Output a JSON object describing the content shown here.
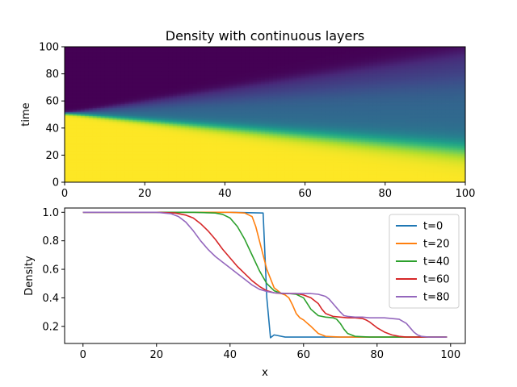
{
  "chart_data": [
    {
      "type": "heatmap",
      "title": "Density with continuous layers",
      "xlabel": "x",
      "ylabel": "time",
      "xlim": [
        0,
        100
      ],
      "ylim": [
        0,
        100
      ],
      "xticks": [
        0,
        20,
        40,
        60,
        80,
        100
      ],
      "yticks": [
        0,
        20,
        40,
        60,
        80,
        100
      ],
      "colormap": "viridis",
      "value_range": [
        0.12,
        1.0
      ],
      "description_fronts": {
        "dense_front_time": {
          "x": [
            0,
            100
          ],
          "time": [
            51,
            25
          ]
        },
        "middle_upper_front_time": {
          "x": [
            0,
            100
          ],
          "time": [
            51,
            75
          ]
        },
        "top_front_time": {
          "x": [
            0,
            100
          ],
          "time": [
            51,
            96
          ]
        }
      },
      "layer_levels": [
        1.0,
        0.43,
        0.26,
        0.12
      ]
    },
    {
      "type": "line",
      "xlabel": "x",
      "ylabel": "Density",
      "xlim": [
        -5,
        104
      ],
      "ylim": [
        0.08,
        1.03
      ],
      "xticks": [
        0,
        20,
        40,
        60,
        80,
        100
      ],
      "yticks": [
        0.2,
        0.4,
        0.6,
        0.8,
        1.0
      ],
      "legend_position": "top-right",
      "series": [
        {
          "name": "t=0",
          "color": "#1f77b4",
          "x": [
            0,
            10,
            20,
            30,
            40,
            49,
            49.5,
            50,
            51,
            52,
            53,
            55,
            60,
            80,
            99
          ],
          "y": [
            1.0,
            1.0,
            1.0,
            1.0,
            1.0,
            0.995,
            0.7,
            0.4,
            0.12,
            0.14,
            0.135,
            0.125,
            0.125,
            0.125,
            0.125
          ]
        },
        {
          "name": "t=20",
          "color": "#ff7f0e",
          "x": [
            0,
            30,
            40,
            44,
            46,
            47,
            48,
            50,
            52,
            54,
            55,
            56,
            57,
            58,
            59,
            60,
            62,
            64,
            66,
            70,
            80,
            99
          ],
          "y": [
            1.0,
            1.0,
            1.0,
            0.995,
            0.97,
            0.9,
            0.8,
            0.6,
            0.47,
            0.43,
            0.42,
            0.4,
            0.35,
            0.29,
            0.26,
            0.245,
            0.2,
            0.15,
            0.13,
            0.125,
            0.125,
            0.125
          ]
        },
        {
          "name": "t=40",
          "color": "#2ca02c",
          "x": [
            0,
            30,
            36,
            38,
            40,
            42,
            44,
            46,
            48,
            50,
            52,
            54,
            56,
            58,
            60,
            61,
            62,
            64,
            66,
            68,
            69,
            70,
            71,
            72,
            74,
            78,
            99
          ],
          "y": [
            1.0,
            1.0,
            0.995,
            0.985,
            0.96,
            0.9,
            0.81,
            0.7,
            0.59,
            0.5,
            0.45,
            0.43,
            0.43,
            0.425,
            0.4,
            0.36,
            0.32,
            0.275,
            0.265,
            0.26,
            0.25,
            0.22,
            0.18,
            0.15,
            0.13,
            0.125,
            0.125
          ]
        },
        {
          "name": "t=60",
          "color": "#d62728",
          "x": [
            0,
            20,
            25,
            28,
            30,
            32,
            34,
            36,
            38,
            40,
            42,
            44,
            46,
            48,
            50,
            52,
            54,
            56,
            58,
            60,
            62,
            64,
            65,
            66,
            68,
            70,
            72,
            74,
            76,
            77,
            78,
            80,
            82,
            84,
            86,
            88,
            99
          ],
          "y": [
            1.0,
            1.0,
            0.995,
            0.98,
            0.96,
            0.92,
            0.87,
            0.81,
            0.74,
            0.68,
            0.62,
            0.57,
            0.52,
            0.48,
            0.45,
            0.435,
            0.43,
            0.43,
            0.43,
            0.42,
            0.4,
            0.36,
            0.32,
            0.29,
            0.27,
            0.265,
            0.26,
            0.26,
            0.255,
            0.245,
            0.23,
            0.19,
            0.16,
            0.14,
            0.13,
            0.125,
            0.125
          ]
        },
        {
          "name": "t=80",
          "color": "#9467bd",
          "x": [
            0,
            20,
            24,
            26,
            28,
            30,
            32,
            34,
            36,
            38,
            40,
            42,
            44,
            46,
            48,
            50,
            52,
            56,
            60,
            62,
            64,
            66,
            67,
            68,
            70,
            71,
            72,
            74,
            76,
            78,
            80,
            82,
            84,
            86,
            88,
            89,
            90,
            91,
            92,
            94,
            99
          ],
          "y": [
            1.0,
            1.0,
            0.99,
            0.97,
            0.93,
            0.87,
            0.8,
            0.74,
            0.69,
            0.65,
            0.61,
            0.57,
            0.53,
            0.49,
            0.46,
            0.445,
            0.435,
            0.43,
            0.43,
            0.43,
            0.425,
            0.41,
            0.39,
            0.36,
            0.3,
            0.275,
            0.27,
            0.265,
            0.265,
            0.26,
            0.26,
            0.26,
            0.255,
            0.25,
            0.22,
            0.19,
            0.16,
            0.14,
            0.13,
            0.125,
            0.125
          ]
        }
      ]
    }
  ]
}
